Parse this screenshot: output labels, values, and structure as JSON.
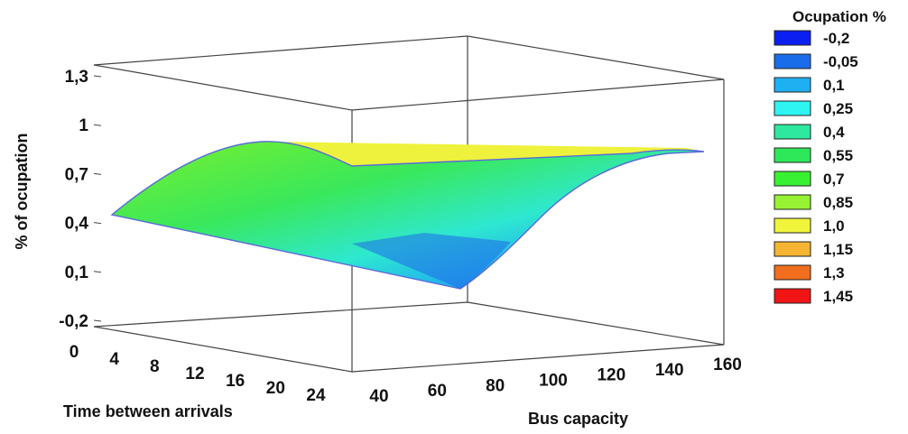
{
  "chart_data": {
    "type": "surface",
    "zlabel": "% of ocupation",
    "xlabel": "Time between arrivals",
    "ylabel": "Bus capacity",
    "z_ticks": [
      "1,3",
      "1",
      "0,7",
      "0,4",
      "0,1",
      "-0,2"
    ],
    "x_ticks": [
      "0",
      "4",
      "8",
      "12",
      "16",
      "20",
      "24"
    ],
    "y_ticks": [
      "40",
      "60",
      "80",
      "100",
      "120",
      "140",
      "160"
    ],
    "zlim": [
      -0.2,
      1.3
    ],
    "xlim": [
      0,
      24
    ],
    "ylim": [
      40,
      160
    ],
    "surface_corners": [
      {
        "time": 2,
        "capacity": 40,
        "value": 0.44
      },
      {
        "time": 24,
        "capacity": 40,
        "value": 0.77
      },
      {
        "time": 24,
        "capacity": 150,
        "value": 0.85
      },
      {
        "time": 2,
        "capacity": 150,
        "value": 0.04
      }
    ],
    "legend": {
      "title": "Ocupation %",
      "entries": [
        {
          "label": "-0,2",
          "color": "#0a1ff0"
        },
        {
          "label": "-0,05",
          "color": "#1a6de8"
        },
        {
          "label": "0,1",
          "color": "#1fb0f2"
        },
        {
          "label": "0,25",
          "color": "#2ef5f2"
        },
        {
          "label": "0,4",
          "color": "#2ee8a0"
        },
        {
          "label": "0,55",
          "color": "#2ee85a"
        },
        {
          "label": "0,7",
          "color": "#3af032"
        },
        {
          "label": "0,85",
          "color": "#96f232"
        },
        {
          "label": "1,0",
          "color": "#f0f53c"
        },
        {
          "label": "1,15",
          "color": "#f5b432"
        },
        {
          "label": "1,3",
          "color": "#f06e1e"
        },
        {
          "label": "1,45",
          "color": "#f01414"
        }
      ]
    }
  }
}
